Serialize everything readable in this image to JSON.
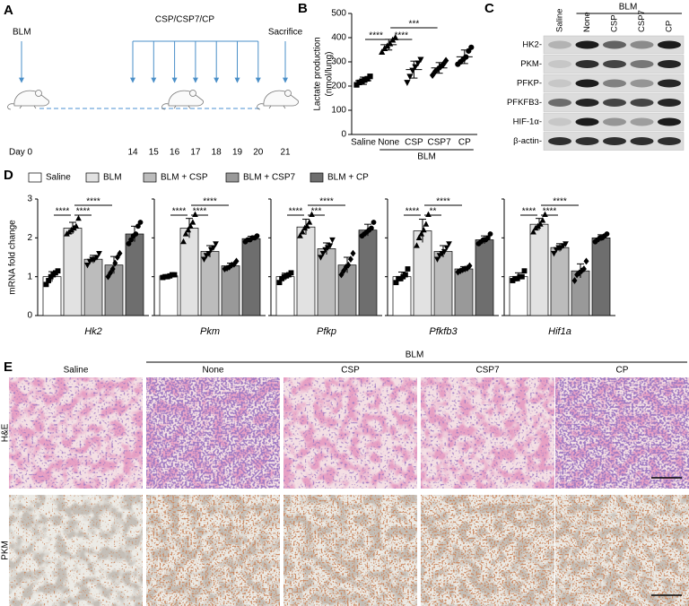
{
  "panels": {
    "A": {
      "label": "A",
      "start_label": "BLM",
      "treatment_label": "CSP/CSP7/CP",
      "end_label": "Sacrifice",
      "day_label": "Day 0",
      "days": [
        14,
        15,
        16,
        17,
        18,
        19,
        20
      ],
      "end_day": 21
    },
    "C": {
      "label": "C",
      "lanes": [
        "Saline",
        "None",
        "CSP",
        "CSP7",
        "CP"
      ],
      "group_label": "BLM",
      "proteins": [
        "HK2-",
        "PKM-",
        "PFKP-",
        "PFKFB3-",
        "HIF-1α-",
        "β-actin-"
      ]
    },
    "E": {
      "label": "E",
      "columns": [
        "Saline",
        "None",
        "CSP",
        "CSP7",
        "CP"
      ],
      "group_label": "BLM",
      "rows": [
        "H&E",
        "PKM"
      ]
    }
  },
  "chart_data": [
    {
      "type": "dot",
      "panel_label": "B",
      "ylabel": [
        "Lactate production",
        "(nmol/lung)"
      ],
      "categories": [
        "Saline",
        "None",
        "CSP",
        "CSP7",
        "CP"
      ],
      "group_label": "BLM",
      "markers": [
        "square",
        "triangle",
        "triangle-down",
        "diamond",
        "circle"
      ],
      "color": "#000000",
      "points": [
        [
          205,
          215,
          220,
          225,
          230,
          240
        ],
        [
          340,
          355,
          365,
          375,
          390,
          400
        ],
        [
          215,
          240,
          265,
          280,
          295,
          310
        ],
        [
          245,
          260,
          270,
          280,
          290,
          305
        ],
        [
          290,
          300,
          310,
          320,
          345,
          360
        ]
      ],
      "means": [
        222,
        371,
        268,
        275,
        321
      ],
      "sd": [
        15,
        22,
        35,
        22,
        28
      ],
      "ylim": [
        0,
        500
      ],
      "yticks": [
        0,
        100,
        200,
        300,
        400,
        500
      ],
      "significance": [
        {
          "from": 0,
          "to": 1,
          "label": "****"
        },
        {
          "from": 1,
          "to": 2,
          "label": "****"
        },
        {
          "from": 1,
          "to": 3,
          "label": "***"
        }
      ]
    },
    {
      "type": "bar",
      "panel_label": "D",
      "ylabel": "mRNA fold change",
      "categories": [
        "Hk2",
        "Pkm",
        "Pfkp",
        "Pfkfb3",
        "Hif1a"
      ],
      "ylim": [
        0,
        3
      ],
      "yticks": [
        0,
        1,
        2,
        3
      ],
      "series": [
        {
          "name": "Saline",
          "color": "#ffffff",
          "marker": "square",
          "values": [
            1.0,
            1.02,
            1.0,
            1.0,
            1.0
          ],
          "errors": [
            0.13,
            0.03,
            0.09,
            0.12,
            0.1
          ],
          "points": [
            [
              0.8,
              0.9,
              1.0,
              1.05,
              1.1,
              1.15
            ],
            [
              0.98,
              1.0,
              1.0,
              1.02,
              1.05,
              1.05
            ],
            [
              0.85,
              0.95,
              1.0,
              1.02,
              1.05,
              1.1
            ],
            [
              0.85,
              0.95,
              0.95,
              1.0,
              1.05,
              1.2
            ],
            [
              0.9,
              0.95,
              0.95,
              1.0,
              1.0,
              1.15
            ]
          ]
        },
        {
          "name": "BLM",
          "color": "#e2e2e2",
          "marker": "triangle",
          "values": [
            2.25,
            2.25,
            2.28,
            2.18,
            2.35
          ],
          "errors": [
            0.15,
            0.25,
            0.2,
            0.3,
            0.15
          ],
          "points": [
            [
              2.1,
              2.15,
              2.2,
              2.25,
              2.3,
              2.5
            ],
            [
              1.9,
              2.1,
              2.2,
              2.3,
              2.4,
              2.6
            ],
            [
              2.05,
              2.15,
              2.25,
              2.3,
              2.4,
              2.6
            ],
            [
              1.8,
              2.0,
              2.1,
              2.2,
              2.35,
              2.6
            ],
            [
              2.15,
              2.25,
              2.3,
              2.35,
              2.45,
              2.6
            ]
          ]
        },
        {
          "name": "BLM + CSP",
          "color": "#bcbcbc",
          "marker": "triangle-down",
          "values": [
            1.45,
            1.65,
            1.72,
            1.65,
            1.75
          ],
          "errors": [
            0.1,
            0.15,
            0.15,
            0.15,
            0.1
          ],
          "points": [
            [
              1.3,
              1.4,
              1.45,
              1.45,
              1.5,
              1.6
            ],
            [
              1.45,
              1.55,
              1.6,
              1.7,
              1.75,
              1.85
            ],
            [
              1.5,
              1.6,
              1.7,
              1.75,
              1.8,
              1.95
            ],
            [
              1.45,
              1.55,
              1.6,
              1.65,
              1.75,
              1.85
            ],
            [
              1.6,
              1.7,
              1.75,
              1.75,
              1.8,
              1.85
            ]
          ]
        },
        {
          "name": "BLM + CSP7",
          "color": "#999999",
          "marker": "diamond",
          "values": [
            1.3,
            1.28,
            1.3,
            1.2,
            1.15
          ],
          "errors": [
            0.22,
            0.07,
            0.2,
            0.06,
            0.18
          ],
          "points": [
            [
              1.0,
              1.1,
              1.2,
              1.35,
              1.5,
              1.6
            ],
            [
              1.2,
              1.22,
              1.25,
              1.3,
              1.32,
              1.4
            ],
            [
              1.05,
              1.15,
              1.25,
              1.3,
              1.45,
              1.6
            ],
            [
              1.12,
              1.15,
              1.18,
              1.2,
              1.22,
              1.28
            ],
            [
              0.9,
              1.05,
              1.1,
              1.15,
              1.2,
              1.4
            ]
          ]
        },
        {
          "name": "BLM + CP",
          "color": "#6e6e6e",
          "marker": "circle",
          "values": [
            2.1,
            1.98,
            2.2,
            1.95,
            2.0
          ],
          "errors": [
            0.2,
            0.06,
            0.15,
            0.1,
            0.08
          ],
          "points": [
            [
              1.85,
              1.95,
              2.05,
              2.1,
              2.3,
              2.4
            ],
            [
              1.9,
              1.95,
              1.95,
              2.0,
              2.0,
              2.05
            ],
            [
              2.05,
              2.1,
              2.15,
              2.2,
              2.25,
              2.4
            ],
            [
              1.85,
              1.9,
              1.95,
              1.95,
              2.0,
              2.1
            ],
            [
              1.9,
              1.95,
              2.0,
              2.0,
              2.05,
              2.1
            ]
          ]
        }
      ],
      "significance": [
        [
          {
            "from": 0,
            "to": 1,
            "label": "****"
          },
          {
            "from": 1,
            "to": 2,
            "label": "****"
          },
          {
            "from": 1,
            "to": 3,
            "label": "****"
          }
        ],
        [
          {
            "from": 0,
            "to": 1,
            "label": "****"
          },
          {
            "from": 1,
            "to": 2,
            "label": "****"
          },
          {
            "from": 1,
            "to": 3,
            "label": "****"
          }
        ],
        [
          {
            "from": 0,
            "to": 1,
            "label": "****"
          },
          {
            "from": 1,
            "to": 2,
            "label": "***"
          },
          {
            "from": 1,
            "to": 3,
            "label": "****"
          }
        ],
        [
          {
            "from": 0,
            "to": 1,
            "label": "****"
          },
          {
            "from": 1,
            "to": 2,
            "label": "**"
          },
          {
            "from": 1,
            "to": 3,
            "label": "****"
          }
        ],
        [
          {
            "from": 0,
            "to": 1,
            "label": "****"
          },
          {
            "from": 1,
            "to": 2,
            "label": "****"
          },
          {
            "from": 1,
            "to": 3,
            "label": "****"
          }
        ]
      ]
    }
  ]
}
